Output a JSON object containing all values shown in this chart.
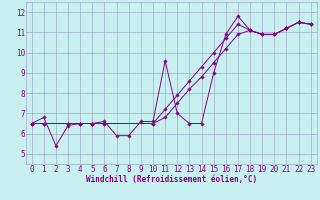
{
  "xlabel": "Windchill (Refroidissement éolien,°C)",
  "bg_color": "#c8f0f0",
  "line_color": "#880088",
  "xlim": [
    -0.5,
    23.5
  ],
  "ylim": [
    4.5,
    12.5
  ],
  "xticks": [
    0,
    1,
    2,
    3,
    4,
    5,
    6,
    7,
    8,
    9,
    10,
    11,
    12,
    13,
    14,
    15,
    16,
    17,
    18,
    19,
    20,
    21,
    22,
    23
  ],
  "yticks": [
    5,
    6,
    7,
    8,
    9,
    10,
    11,
    12
  ],
  "line1_x": [
    0,
    1,
    2,
    3,
    4,
    5,
    6,
    7,
    8,
    9,
    10,
    11,
    12,
    13,
    14,
    15,
    16,
    17,
    18,
    19,
    20,
    21,
    22,
    23
  ],
  "line1_y": [
    6.5,
    6.8,
    5.4,
    6.4,
    6.5,
    6.5,
    6.6,
    5.9,
    5.9,
    6.6,
    6.6,
    9.6,
    7.0,
    6.5,
    6.5,
    9.0,
    10.9,
    11.8,
    11.1,
    10.9,
    10.9,
    11.2,
    11.5,
    11.4
  ],
  "line2_x": [
    0,
    1,
    3,
    4,
    5,
    6,
    10,
    11,
    12,
    13,
    14,
    15,
    16,
    17,
    18,
    19,
    20,
    21,
    22,
    23
  ],
  "line2_y": [
    6.5,
    6.5,
    6.5,
    6.5,
    6.5,
    6.5,
    6.5,
    7.2,
    7.9,
    8.6,
    9.3,
    10.0,
    10.7,
    11.4,
    11.1,
    10.9,
    10.9,
    11.2,
    11.5,
    11.4
  ],
  "line3_x": [
    0,
    1,
    3,
    4,
    5,
    6,
    10,
    11,
    12,
    13,
    14,
    15,
    16,
    17,
    18,
    19,
    20,
    21,
    22,
    23
  ],
  "line3_y": [
    6.5,
    6.5,
    6.5,
    6.5,
    6.5,
    6.5,
    6.5,
    6.8,
    7.5,
    8.2,
    8.8,
    9.5,
    10.2,
    10.9,
    11.1,
    10.9,
    10.9,
    11.2,
    11.5,
    11.4
  ],
  "tick_fontsize": 5.5,
  "xlabel_fontsize": 5.5
}
